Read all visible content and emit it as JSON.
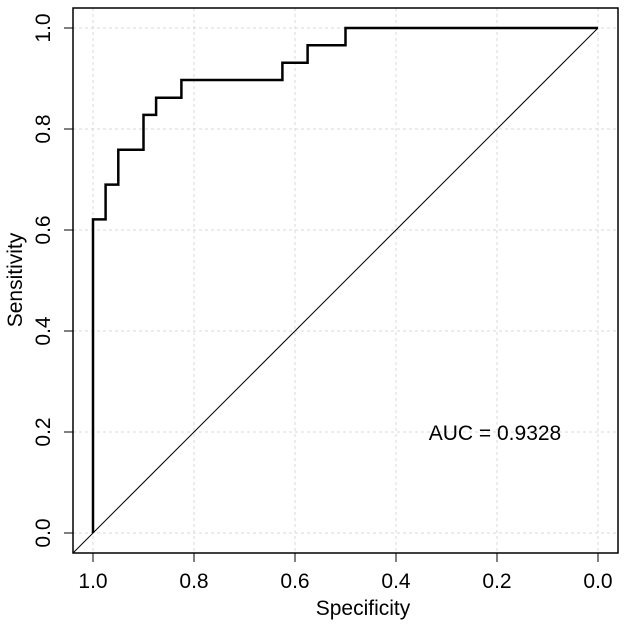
{
  "chart_data": {
    "type": "line",
    "title": "",
    "xlabel": "Specificity",
    "ylabel": "Sensitivity",
    "xlim": [
      1.0,
      0.0
    ],
    "ylim": [
      0.0,
      1.0
    ],
    "x_reversed": true,
    "grid": true,
    "x_ticks": [
      "1.0",
      "0.8",
      "0.6",
      "0.4",
      "0.2",
      "0.0"
    ],
    "x_tick_values": [
      1.0,
      0.8,
      0.6,
      0.4,
      0.2,
      0.0
    ],
    "y_ticks": [
      "0.0",
      "0.2",
      "0.4",
      "0.6",
      "0.8",
      "1.0"
    ],
    "y_tick_values": [
      0.0,
      0.2,
      0.4,
      0.6,
      0.8,
      1.0
    ],
    "series": [
      {
        "name": "ROC curve",
        "step": true,
        "color": "#000000",
        "specificity": [
          1.0,
          1.0,
          0.975,
          0.975,
          0.95,
          0.95,
          0.9,
          0.9,
          0.875,
          0.875,
          0.825,
          0.825,
          0.625,
          0.625,
          0.575,
          0.575,
          0.5,
          0.5,
          0.0
        ],
        "sensitivity": [
          0.0,
          0.621,
          0.621,
          0.69,
          0.69,
          0.759,
          0.759,
          0.828,
          0.828,
          0.862,
          0.862,
          0.897,
          0.897,
          0.931,
          0.931,
          0.966,
          0.966,
          1.0,
          1.0
        ]
      },
      {
        "name": "Reference line",
        "color": "#000000",
        "specificity": [
          1.0,
          0.0
        ],
        "sensitivity": [
          0.0,
          1.0
        ]
      }
    ],
    "annotations": [
      {
        "text": "AUC = 0.9328",
        "x": 0.2,
        "y": 0.2
      }
    ]
  }
}
